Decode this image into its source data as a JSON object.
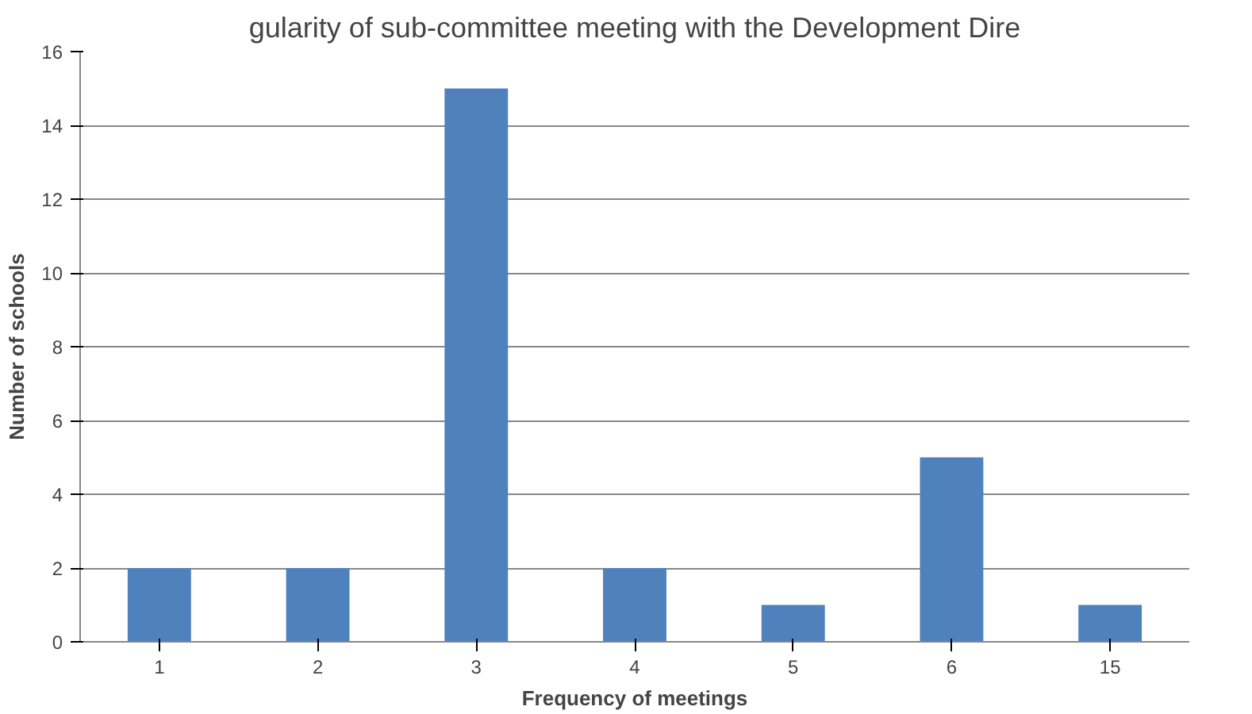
{
  "chart_data": {
    "type": "bar",
    "title": "gularity of sub-committee meeting with the Development Dire",
    "xlabel": "Frequency of meetings",
    "ylabel": "Number of schools",
    "categories": [
      "1",
      "2",
      "3",
      "4",
      "5",
      "6",
      "15"
    ],
    "values": [
      2,
      2,
      15,
      2,
      1,
      5,
      1
    ],
    "color": "#4f81bd",
    "ylim": [
      0,
      16
    ],
    "yticks": [
      0,
      2,
      4,
      6,
      8,
      10,
      12,
      14,
      16
    ],
    "grid": "y"
  }
}
